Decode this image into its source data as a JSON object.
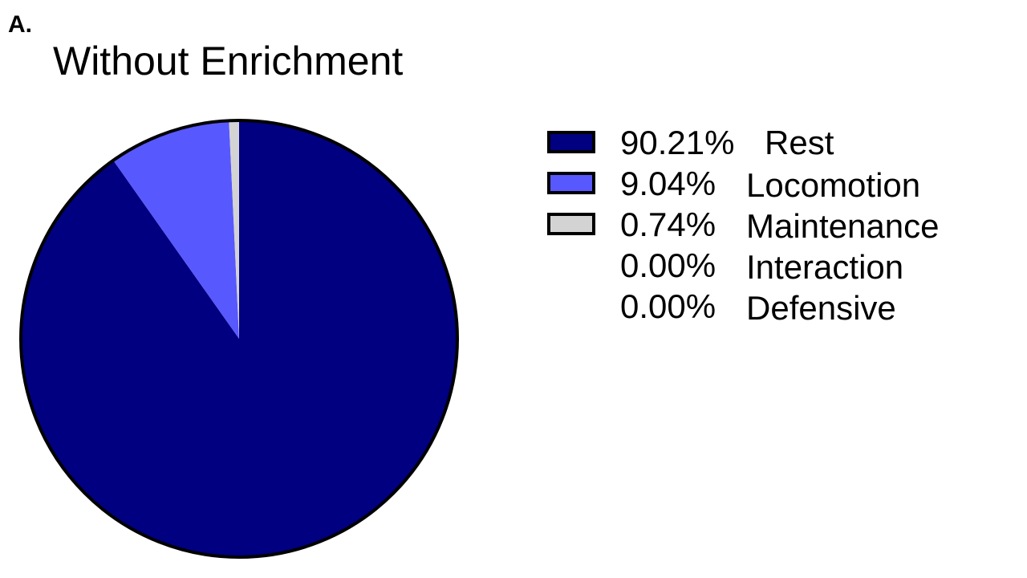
{
  "panel_label": "A.",
  "chart_data": {
    "type": "pie",
    "title": "Without Enrichment",
    "start_angle_deg": 0,
    "direction": "clockwise",
    "slices": [
      {
        "label": "Rest",
        "percent_label": "90.21%",
        "value": 90.21,
        "color": "#000080"
      },
      {
        "label": "Locomotion",
        "percent_label": "9.04%",
        "value": 9.04,
        "color": "#5858ff"
      },
      {
        "label": "Maintenance",
        "percent_label": "0.74%",
        "value": 0.74,
        "color": "#d3d3d3"
      },
      {
        "label": "Interaction",
        "percent_label": "0.00%",
        "value": 0.0,
        "color": "#ffffff"
      },
      {
        "label": "Defensive",
        "percent_label": "0.00%",
        "value": 0.0,
        "color": "#ffffff"
      }
    ],
    "legend_placement": "right",
    "outline_color": "#000000"
  }
}
